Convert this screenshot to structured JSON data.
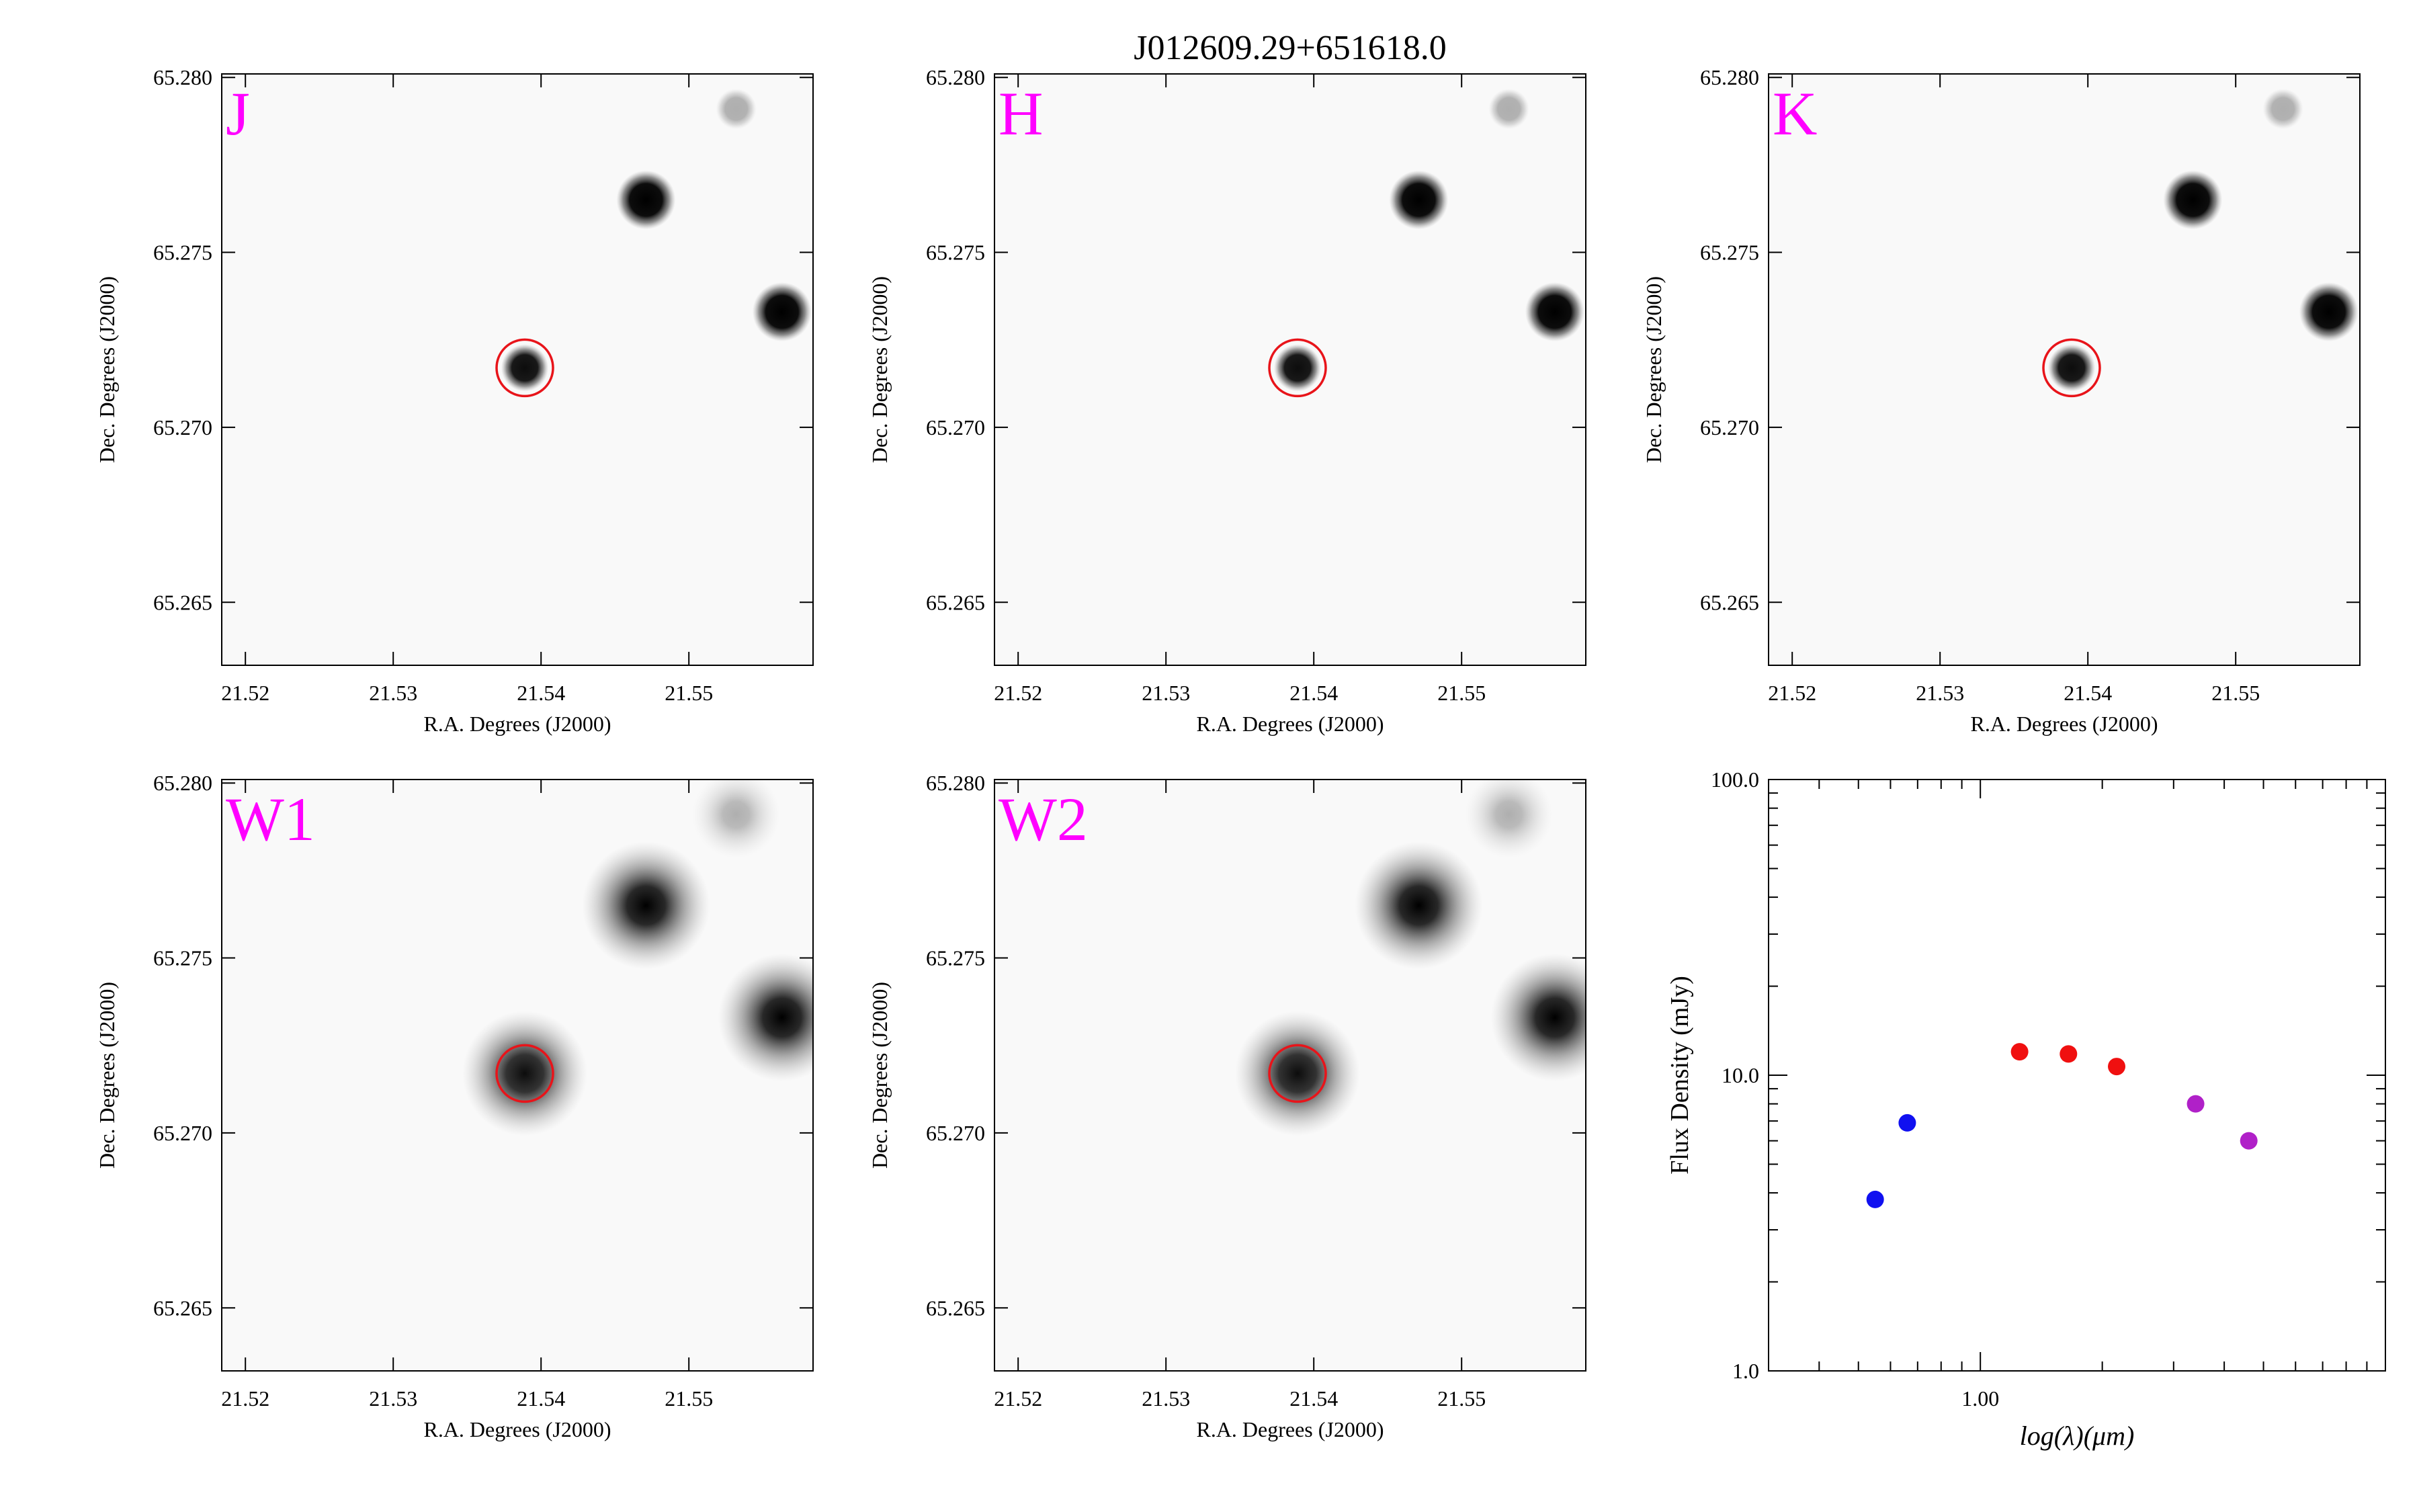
{
  "figure": {
    "title": "J012609.29+651618.0"
  },
  "image_panels": [
    {
      "band": "J",
      "label_color": "#ff00ff",
      "xlabel": "R.A. Degrees (J2000)",
      "ylabel": "Dec. Degrees (J2000)",
      "xticks": [
        "21.52",
        "21.53",
        "21.54",
        "21.55"
      ],
      "yticks": [
        "65.280",
        "65.275",
        "65.270",
        "65.265"
      ],
      "psf": "sharp"
    },
    {
      "band": "H",
      "label_color": "#ff00ff",
      "xlabel": "R.A. Degrees (J2000)",
      "ylabel": "Dec. Degrees (J2000)",
      "xticks": [
        "21.52",
        "21.53",
        "21.54",
        "21.55"
      ],
      "yticks": [
        "65.280",
        "65.275",
        "65.270",
        "65.265"
      ],
      "psf": "sharp"
    },
    {
      "band": "K",
      "label_color": "#ff00ff",
      "xlabel": "R.A. Degrees (J2000)",
      "ylabel": "Dec. Degrees (J2000)",
      "xticks": [
        "21.52",
        "21.53",
        "21.54",
        "21.55"
      ],
      "yticks": [
        "65.280",
        "65.275",
        "65.270",
        "65.265"
      ],
      "psf": "sharp"
    },
    {
      "band": "W1",
      "label_color": "#ff00ff",
      "xlabel": "R.A. Degrees (J2000)",
      "ylabel": "Dec. Degrees (J2000)",
      "xticks": [
        "21.52",
        "21.53",
        "21.54",
        "21.55"
      ],
      "yticks": [
        "65.280",
        "65.275",
        "65.270",
        "65.265"
      ],
      "psf": "blurred"
    },
    {
      "band": "W2",
      "label_color": "#ff00ff",
      "xlabel": "R.A. Degrees (J2000)",
      "ylabel": "Dec. Degrees (J2000)",
      "xticks": [
        "21.52",
        "21.53",
        "21.54",
        "21.55"
      ],
      "yticks": [
        "65.280",
        "65.275",
        "65.270",
        "65.265"
      ],
      "psf": "blurred"
    }
  ],
  "sources": [
    {
      "ra": 21.5389,
      "dec": 65.2717,
      "peak": 0.95,
      "target": true
    },
    {
      "ra": 21.5471,
      "dec": 65.2765,
      "peak": 1.0,
      "target": false
    },
    {
      "ra": 21.5563,
      "dec": 65.2733,
      "peak": 1.0,
      "target": false
    },
    {
      "ra": 21.5532,
      "dec": 65.2791,
      "peak": 0.3,
      "target": false
    }
  ],
  "marker_color": "#e8141a",
  "chart_data": {
    "type": "scatter",
    "title": "",
    "xlabel": "log(λ)(μm)",
    "ylabel": "Flux Density (mJy)",
    "x_scale": "log",
    "y_scale": "log",
    "xlim": [
      0.3,
      10
    ],
    "ylim": [
      1.0,
      100.0
    ],
    "xtick_labels": [
      "1.00"
    ],
    "ytick_labels": [
      "100.0",
      "10.0",
      "1.0"
    ],
    "series": [
      {
        "color": "#1010f0",
        "x": [
          0.55,
          0.66
        ],
        "y": [
          3.8,
          6.9
        ]
      },
      {
        "color": "#f01010",
        "x": [
          1.25,
          1.65,
          2.17
        ],
        "y": [
          12.0,
          11.8,
          10.7
        ]
      },
      {
        "color": "#b020c8",
        "x": [
          3.4,
          4.6
        ],
        "y": [
          8.0,
          6.0
        ]
      }
    ]
  }
}
